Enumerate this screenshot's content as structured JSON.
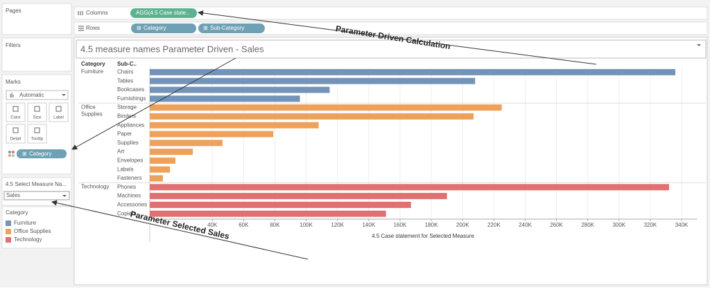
{
  "sidebar": {
    "pages": "Pages",
    "filters": "Filters",
    "marks": {
      "title": "Marks",
      "mark_type": "Automatic",
      "buttons": [
        "Color",
        "Size",
        "Label",
        "Detail",
        "Tooltip"
      ],
      "pill": "Category"
    },
    "parameter": {
      "title": "4.5 Select Measure Na...",
      "value": "Sales"
    },
    "legend": {
      "title": "Category",
      "items": [
        {
          "name": "Furniture",
          "color": "#7394b8"
        },
        {
          "name": "Office Supplies",
          "color": "#eda15a"
        },
        {
          "name": "Technology",
          "color": "#dd7270"
        }
      ]
    }
  },
  "shelves": {
    "columns": {
      "label": "Columns",
      "pills": [
        "AGG(4.5 Case state.."
      ]
    },
    "rows": {
      "label": "Rows",
      "pills": [
        "Category",
        "Sub-Category"
      ]
    }
  },
  "view": {
    "title": "4.5 measure names Parameter Driven  - Sales",
    "headers": [
      "Category",
      "Sub-C.."
    ],
    "chart": {
      "type": "bar",
      "orientation": "horizontal",
      "groups": [
        {
          "name": [
            "Furniture"
          ],
          "categories": [
            "Chairs",
            "Tables",
            "Bookcases",
            "Furnishings"
          ],
          "values": [
            336000,
            208000,
            115000,
            96000
          ]
        },
        {
          "name": [
            "Office",
            "Supplies"
          ],
          "categories": [
            "Storage",
            "Binders",
            "Appliances",
            "Paper",
            "Supplies",
            "Art",
            "Envelopes",
            "Labels",
            "Fasteners"
          ],
          "values": [
            225000,
            207000,
            108000,
            79000,
            46500,
            27500,
            16400,
            12900,
            8400
          ]
        },
        {
          "name": [
            "Technology"
          ],
          "categories": [
            "Phones",
            "Machines",
            "Accessories",
            "Copiers"
          ],
          "values": [
            332000,
            190000,
            167000,
            151000
          ]
        }
      ],
      "xlim": [
        0,
        350000
      ],
      "xticks": [
        {
          "value": 40000,
          "label": "40K"
        },
        {
          "value": 60000,
          "label": "60K"
        },
        {
          "value": 80000,
          "label": "80K"
        },
        {
          "value": 100000,
          "label": "100K"
        },
        {
          "value": 120000,
          "label": "120K"
        },
        {
          "value": 140000,
          "label": "140K"
        },
        {
          "value": 160000,
          "label": "160K"
        },
        {
          "value": 180000,
          "label": "180K"
        },
        {
          "value": 200000,
          "label": "200K"
        },
        {
          "value": 220000,
          "label": "220K"
        },
        {
          "value": 240000,
          "label": "240K"
        },
        {
          "value": 260000,
          "label": "260K"
        },
        {
          "value": 280000,
          "label": "280K"
        },
        {
          "value": 300000,
          "label": "300K"
        },
        {
          "value": 320000,
          "label": "320K"
        },
        {
          "value": 340000,
          "label": "340K"
        }
      ],
      "grid": true,
      "xlabel": "4.5 Case statement for Selected Measure"
    }
  },
  "annotations": [
    "Parameter Driven Calculation",
    "Parameter Selected Sales"
  ]
}
